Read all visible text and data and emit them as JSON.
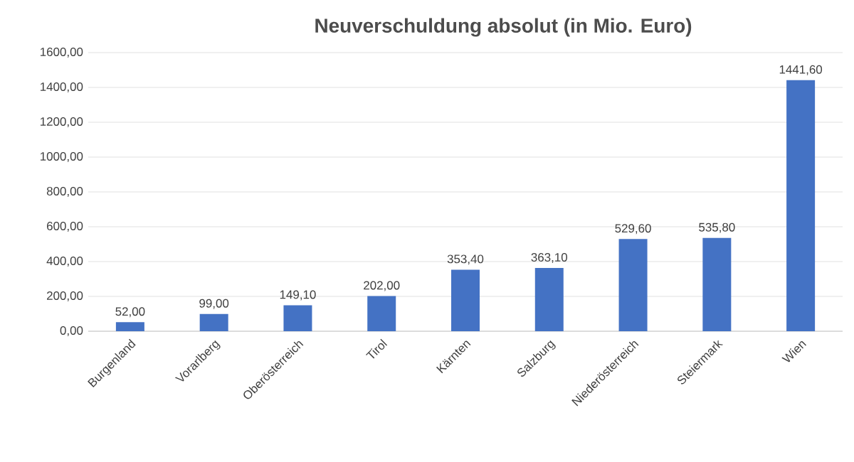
{
  "chart_data": {
    "type": "bar",
    "title": "Neuverschuldung absolut (in Mio. Euro)",
    "categories": [
      "Burgenland",
      "Vorarlberg",
      "Oberösterreich",
      "Tirol",
      "Kärnten",
      "Salzburg",
      "Niederösterreich",
      "Steiermark",
      "Wien"
    ],
    "values": [
      52.0,
      99.0,
      149.1,
      202.0,
      353.4,
      363.1,
      529.6,
      535.8,
      1441.6
    ],
    "value_labels": [
      "52,00",
      "99,00",
      "149,10",
      "202,00",
      "353,40",
      "363,10",
      "529,60",
      "535,80",
      "1441,60"
    ],
    "color": "#4472c4",
    "ylim": [
      0,
      1600
    ],
    "yticks": [
      {
        "value": 0,
        "label": "0,00"
      },
      {
        "value": 200,
        "label": "200,00"
      },
      {
        "value": 400,
        "label": "400,00"
      },
      {
        "value": 600,
        "label": "600,00"
      },
      {
        "value": 800,
        "label": "800,00"
      },
      {
        "value": 1000,
        "label": "1000,00"
      },
      {
        "value": 1200,
        "label": "1200,00"
      },
      {
        "value": 1400,
        "label": "1400,00"
      },
      {
        "value": 1600,
        "label": "1600,00"
      }
    ],
    "grid": "y"
  }
}
